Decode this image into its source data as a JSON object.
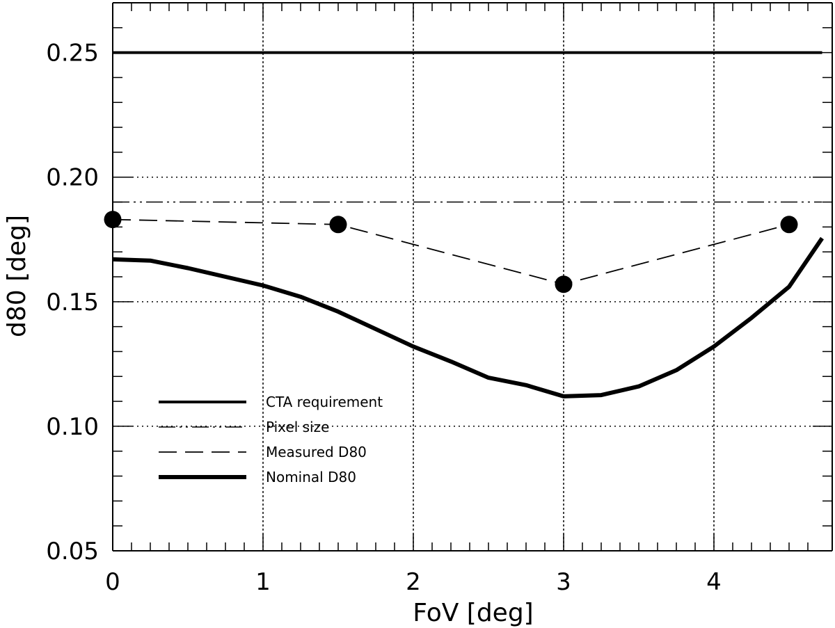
{
  "chart_data": {
    "type": "line",
    "xlabel": "FoV [deg]",
    "ylabel": "d80 [deg]",
    "xlim": [
      0,
      4.72
    ],
    "ylim": [
      0.05,
      0.27
    ],
    "x_ticks": [
      0,
      1,
      2,
      3,
      4
    ],
    "x_tick_labels": [
      "0",
      "1",
      "2",
      "3",
      "4"
    ],
    "y_ticks": [
      0.05,
      0.1,
      0.15,
      0.2,
      0.25
    ],
    "y_tick_labels": [
      "0.05",
      "0.10",
      "0.15",
      "0.20",
      "0.25"
    ],
    "x_minor_step": 0.125,
    "y_minor_step": 0.01,
    "grid": {
      "vertical": [
        1,
        2,
        3,
        4
      ],
      "horizontal": [
        0.1,
        0.15,
        0.2
      ]
    },
    "legend": {
      "placement": "bottom-left",
      "entries": [
        "CTA requirement",
        "Pixel size",
        "Measured D80",
        "Nominal D80"
      ]
    },
    "series": [
      {
        "name": "CTA requirement",
        "style": "solid",
        "x": [
          0,
          4.72
        ],
        "y": [
          0.25,
          0.25
        ]
      },
      {
        "name": "Pixel size",
        "style": "dash-dot-dot",
        "x": [
          0,
          4.72
        ],
        "y": [
          0.19,
          0.19
        ]
      },
      {
        "name": "Measured D80",
        "style": "dashed",
        "markers": true,
        "x": [
          0,
          1.5,
          3.0,
          4.5
        ],
        "y": [
          0.183,
          0.181,
          0.157,
          0.181
        ]
      },
      {
        "name": "Nominal D80",
        "style": "thick",
        "x": [
          0,
          0.25,
          0.5,
          0.75,
          1.0,
          1.25,
          1.5,
          1.75,
          2.0,
          2.25,
          2.5,
          2.75,
          3.0,
          3.25,
          3.5,
          3.75,
          4.0,
          4.25,
          4.5,
          4.72
        ],
        "y": [
          0.167,
          0.1665,
          0.1635,
          0.16,
          0.1565,
          0.152,
          0.146,
          0.139,
          0.132,
          0.126,
          0.1195,
          0.1165,
          0.112,
          0.1125,
          0.116,
          0.1225,
          0.132,
          0.1435,
          0.156,
          0.1755
        ]
      }
    ]
  }
}
